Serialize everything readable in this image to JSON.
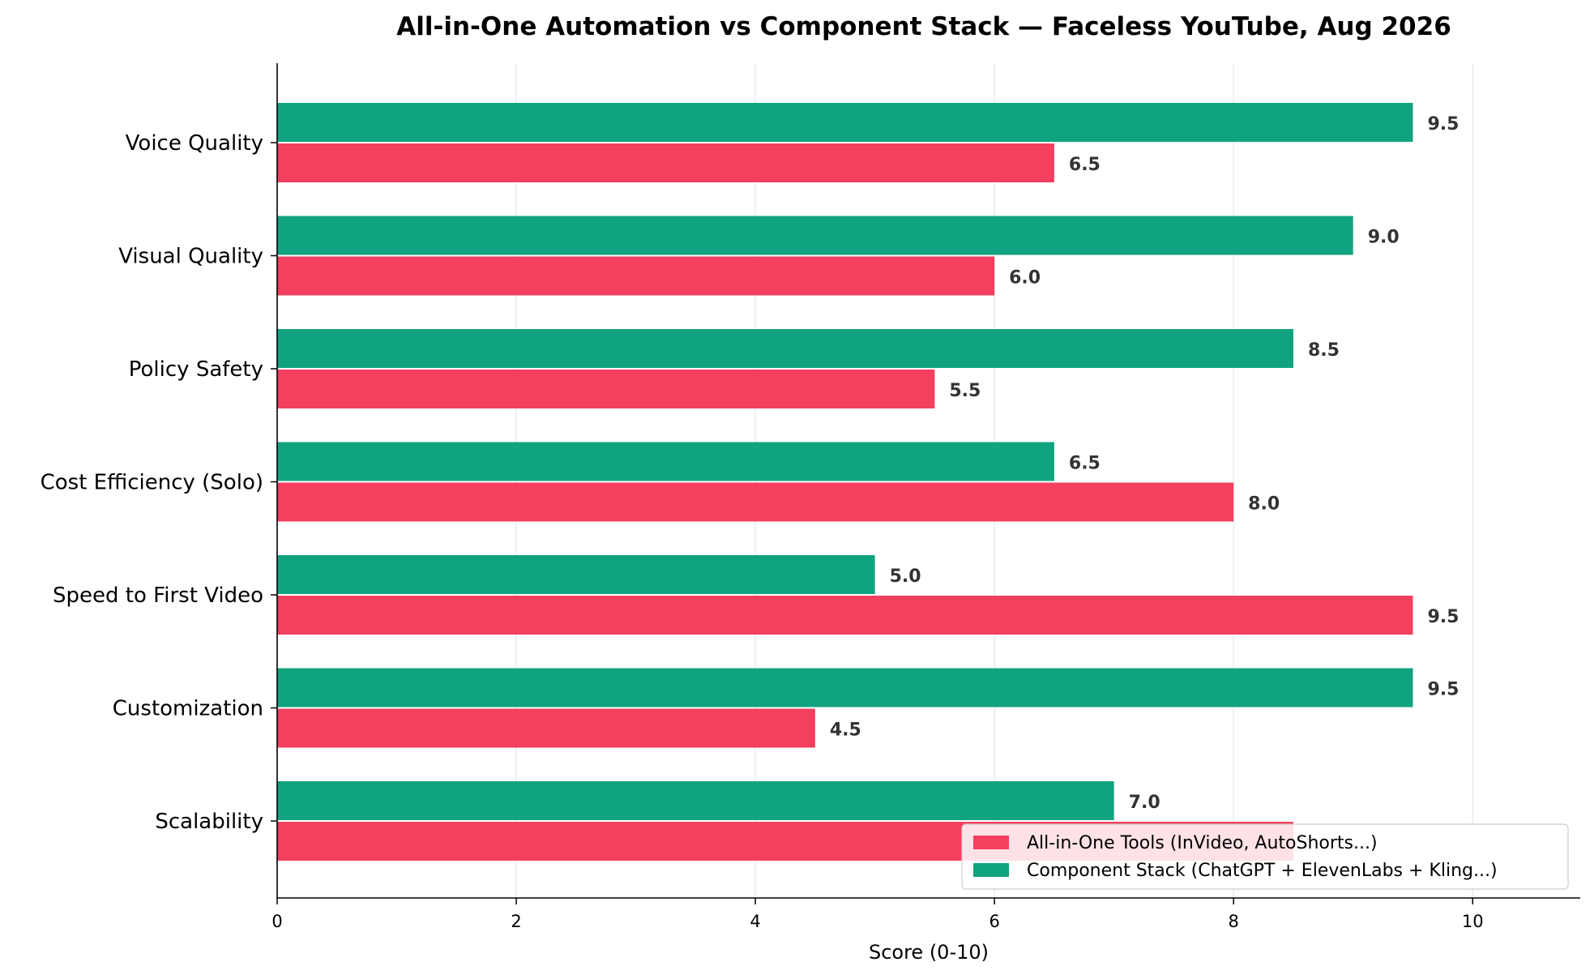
{
  "chart_data": {
    "type": "bar",
    "orientation": "horizontal",
    "title": "All-in-One Automation vs Component Stack — Faceless YouTube, Aug 2026",
    "xlabel": "Score (0-10)",
    "ylabel": "",
    "xlim": [
      0,
      10.9
    ],
    "xticks": [
      0,
      2,
      4,
      6,
      8,
      10
    ],
    "grid": "vertical",
    "legend_position": "lower-right",
    "categories": [
      "Voice Quality",
      "Visual Quality",
      "Policy Safety",
      "Cost Efficiency (Solo)",
      "Speed to First Video",
      "Customization",
      "Scalability"
    ],
    "series": [
      {
        "name": "All-in-One Tools (InVideo, AutoShorts...)",
        "color": "#f43f5e",
        "values": [
          6.5,
          6.0,
          5.5,
          8.0,
          9.5,
          4.5,
          8.5
        ],
        "labels": [
          "6.5",
          "6.0",
          "5.5",
          "8.0",
          "9.5",
          "4.5",
          ""
        ]
      },
      {
        "name": "Component Stack (ChatGPT + ElevenLabs + Kling...)",
        "color": "#10a37f",
        "values": [
          9.5,
          9.0,
          8.5,
          6.5,
          5.0,
          9.5,
          7.0
        ],
        "labels": [
          "9.5",
          "9.0",
          "8.5",
          "6.5",
          "5.0",
          "9.5",
          "7.0"
        ]
      }
    ]
  }
}
